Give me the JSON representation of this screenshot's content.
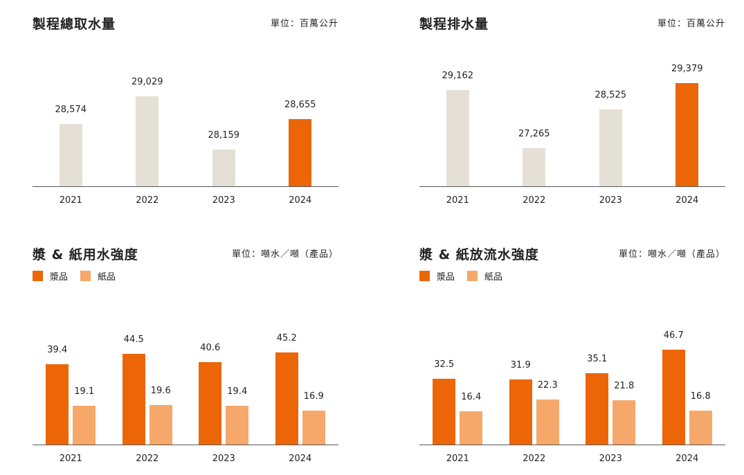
{
  "colors": {
    "past": "#e5e0d5",
    "current": "#ec6608",
    "pulp": "#ec6608",
    "paper": "#f5a86a"
  },
  "chart_data": [
    {
      "type": "bar",
      "title": "製程總取水量",
      "unit": "單位：百萬公升",
      "categories": [
        "2021",
        "2022",
        "2023",
        "2024"
      ],
      "values": [
        28574,
        29029,
        28159,
        28655
      ],
      "labels": [
        "28,574",
        "29,029",
        "28,159",
        "28,655"
      ],
      "highlight": 3,
      "ylim": [
        27550,
        29360
      ]
    },
    {
      "type": "bar",
      "title": "製程排水量",
      "unit": "單位：百萬公升",
      "categories": [
        "2021",
        "2022",
        "2023",
        "2024"
      ],
      "values": [
        29162,
        27265,
        28525,
        29379
      ],
      "labels": [
        "29,162",
        "27,265",
        "28,525",
        "29,379"
      ],
      "highlight": 3,
      "ylim": [
        26000,
        29610
      ]
    },
    {
      "type": "bar",
      "title": "漿 & 紙用水強度",
      "unit": "單位：噸水／噸（產品）",
      "categories": [
        "2021",
        "2022",
        "2023",
        "2024"
      ],
      "legend": [
        "漿品",
        "紙品"
      ],
      "series": [
        {
          "name": "漿品",
          "values": [
            39.4,
            44.5,
            40.6,
            45.2
          ]
        },
        {
          "name": "紙品",
          "values": [
            19.1,
            19.6,
            19.4,
            16.9
          ]
        }
      ],
      "ylim": [
        0,
        54
      ]
    },
    {
      "type": "bar",
      "title": "漿 & 紙放流水強度",
      "unit": "單位：噸水／噸（產品）",
      "categories": [
        "2021",
        "2022",
        "2023",
        "2024"
      ],
      "legend": [
        "漿品",
        "紙品"
      ],
      "series": [
        {
          "name": "漿品",
          "values": [
            32.5,
            31.9,
            35.1,
            46.7
          ]
        },
        {
          "name": "紙品",
          "values": [
            16.4,
            22.3,
            21.8,
            16.8
          ]
        }
      ],
      "ylim": [
        0,
        54
      ]
    }
  ]
}
